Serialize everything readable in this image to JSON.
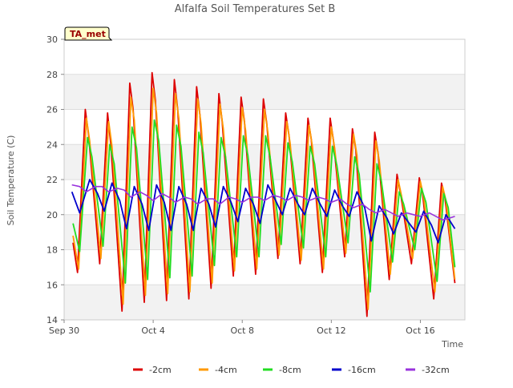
{
  "chart_data": {
    "type": "line",
    "title": "Alfalfa Soil Temperatures Set B",
    "xlabel": "Time",
    "ylabel": "Soil Temperature (C)",
    "badge": "TA_met",
    "xlim": [
      0,
      18
    ],
    "ylim": [
      14,
      30
    ],
    "x_ticks": [
      {
        "value": 0,
        "label": "Sep 30"
      },
      {
        "value": 4,
        "label": "Oct 4"
      },
      {
        "value": 8,
        "label": "Oct 8"
      },
      {
        "value": 12,
        "label": "Oct 12"
      },
      {
        "value": 16,
        "label": "Oct 16"
      }
    ],
    "y_ticks": [
      14,
      16,
      18,
      20,
      22,
      24,
      26,
      28,
      30
    ],
    "grid": true,
    "legend_position": "bottom",
    "series": [
      {
        "name": "-2cm",
        "color": "#dd0000",
        "width": 1.8,
        "points": [
          [
            0.4,
            18.4
          ],
          [
            0.6,
            16.7
          ],
          [
            0.95,
            26.0
          ],
          [
            1.1,
            24.5
          ],
          [
            1.6,
            17.2
          ],
          [
            1.95,
            25.8
          ],
          [
            2.1,
            24.0
          ],
          [
            2.6,
            14.5
          ],
          [
            2.95,
            27.5
          ],
          [
            3.1,
            26.0
          ],
          [
            3.6,
            15.0
          ],
          [
            3.95,
            28.1
          ],
          [
            4.1,
            26.5
          ],
          [
            4.6,
            15.1
          ],
          [
            4.95,
            27.7
          ],
          [
            5.1,
            26.0
          ],
          [
            5.6,
            15.2
          ],
          [
            5.95,
            27.3
          ],
          [
            6.1,
            25.7
          ],
          [
            6.6,
            15.8
          ],
          [
            6.95,
            26.9
          ],
          [
            7.1,
            25.3
          ],
          [
            7.6,
            16.5
          ],
          [
            7.95,
            26.7
          ],
          [
            8.1,
            25.3
          ],
          [
            8.6,
            16.6
          ],
          [
            8.95,
            26.6
          ],
          [
            9.1,
            25.2
          ],
          [
            9.6,
            17.5
          ],
          [
            9.95,
            25.8
          ],
          [
            10.1,
            24.5
          ],
          [
            10.6,
            17.2
          ],
          [
            10.95,
            25.5
          ],
          [
            11.1,
            24.3
          ],
          [
            11.6,
            16.7
          ],
          [
            11.95,
            25.5
          ],
          [
            12.1,
            24.2
          ],
          [
            12.6,
            17.6
          ],
          [
            12.95,
            24.9
          ],
          [
            13.1,
            23.7
          ],
          [
            13.6,
            14.2
          ],
          [
            13.95,
            24.7
          ],
          [
            14.1,
            23.5
          ],
          [
            14.6,
            16.3
          ],
          [
            14.95,
            22.3
          ],
          [
            15.1,
            21.3
          ],
          [
            15.6,
            17.2
          ],
          [
            15.95,
            22.1
          ],
          [
            16.1,
            21.2
          ],
          [
            16.6,
            15.2
          ],
          [
            16.95,
            21.8
          ],
          [
            17.1,
            21.0
          ],
          [
            17.55,
            16.1
          ]
        ]
      },
      {
        "name": "-4cm",
        "color": "#ff9900",
        "width": 1.8,
        "points": [
          [
            0.4,
            18.8
          ],
          [
            0.65,
            16.9
          ],
          [
            1.0,
            25.5
          ],
          [
            1.15,
            24.2
          ],
          [
            1.65,
            17.5
          ],
          [
            2.0,
            25.3
          ],
          [
            2.15,
            23.9
          ],
          [
            2.65,
            14.9
          ],
          [
            3.0,
            26.7
          ],
          [
            3.15,
            25.4
          ],
          [
            3.65,
            15.4
          ],
          [
            4.0,
            27.2
          ],
          [
            4.15,
            25.8
          ],
          [
            4.65,
            15.5
          ],
          [
            5.0,
            26.9
          ],
          [
            5.15,
            25.5
          ],
          [
            5.65,
            15.6
          ],
          [
            6.0,
            26.6
          ],
          [
            6.15,
            25.2
          ],
          [
            6.65,
            16.1
          ],
          [
            7.0,
            26.3
          ],
          [
            7.15,
            24.9
          ],
          [
            7.65,
            16.8
          ],
          [
            8.0,
            26.1
          ],
          [
            8.15,
            24.8
          ],
          [
            8.65,
            16.9
          ],
          [
            9.0,
            26.0
          ],
          [
            9.15,
            24.7
          ],
          [
            9.65,
            17.7
          ],
          [
            10.0,
            25.3
          ],
          [
            10.15,
            24.1
          ],
          [
            10.65,
            17.4
          ],
          [
            11.0,
            25.1
          ],
          [
            11.15,
            23.9
          ],
          [
            11.65,
            16.9
          ],
          [
            12.0,
            25.0
          ],
          [
            12.15,
            23.8
          ],
          [
            12.65,
            17.8
          ],
          [
            13.0,
            24.6
          ],
          [
            13.15,
            23.4
          ],
          [
            13.65,
            14.6
          ],
          [
            14.0,
            24.2
          ],
          [
            14.15,
            23.1
          ],
          [
            14.65,
            16.6
          ],
          [
            15.0,
            22.0
          ],
          [
            15.15,
            21.1
          ],
          [
            15.65,
            17.5
          ],
          [
            16.0,
            21.9
          ],
          [
            16.15,
            21.0
          ],
          [
            16.65,
            15.6
          ],
          [
            17.0,
            21.6
          ],
          [
            17.15,
            20.8
          ],
          [
            17.55,
            16.3
          ]
        ]
      },
      {
        "name": "-8cm",
        "color": "#22dd22",
        "width": 1.8,
        "points": [
          [
            0.4,
            19.5
          ],
          [
            0.7,
            17.9
          ],
          [
            1.05,
            24.4
          ],
          [
            1.25,
            23.3
          ],
          [
            1.75,
            18.2
          ],
          [
            2.05,
            24.0
          ],
          [
            2.25,
            22.9
          ],
          [
            2.75,
            16.1
          ],
          [
            3.05,
            25.0
          ],
          [
            3.25,
            23.8
          ],
          [
            3.75,
            16.3
          ],
          [
            4.05,
            25.4
          ],
          [
            4.25,
            24.2
          ],
          [
            4.75,
            16.4
          ],
          [
            5.05,
            25.1
          ],
          [
            5.25,
            23.9
          ],
          [
            5.75,
            16.5
          ],
          [
            6.05,
            24.7
          ],
          [
            6.25,
            23.5
          ],
          [
            6.75,
            17.1
          ],
          [
            7.05,
            24.4
          ],
          [
            7.25,
            23.3
          ],
          [
            7.75,
            17.6
          ],
          [
            8.05,
            24.5
          ],
          [
            8.25,
            23.4
          ],
          [
            8.75,
            17.6
          ],
          [
            9.05,
            24.5
          ],
          [
            9.25,
            23.3
          ],
          [
            9.75,
            18.3
          ],
          [
            10.05,
            24.1
          ],
          [
            10.25,
            23.0
          ],
          [
            10.75,
            18.1
          ],
          [
            11.05,
            23.9
          ],
          [
            11.25,
            22.9
          ],
          [
            11.75,
            17.6
          ],
          [
            12.05,
            23.9
          ],
          [
            12.25,
            22.8
          ],
          [
            12.75,
            18.4
          ],
          [
            13.05,
            23.3
          ],
          [
            13.25,
            22.3
          ],
          [
            13.75,
            15.6
          ],
          [
            14.05,
            22.9
          ],
          [
            14.25,
            21.9
          ],
          [
            14.75,
            17.3
          ],
          [
            15.05,
            21.3
          ],
          [
            15.25,
            20.6
          ],
          [
            15.75,
            18.0
          ],
          [
            16.05,
            21.5
          ],
          [
            16.25,
            20.7
          ],
          [
            16.75,
            16.2
          ],
          [
            17.05,
            21.2
          ],
          [
            17.25,
            20.4
          ],
          [
            17.55,
            17.0
          ]
        ]
      },
      {
        "name": "-16cm",
        "color": "#0000cc",
        "width": 1.8,
        "points": [
          [
            0.35,
            21.3
          ],
          [
            0.7,
            20.1
          ],
          [
            1.15,
            22.0
          ],
          [
            1.5,
            21.2
          ],
          [
            1.8,
            20.2
          ],
          [
            2.15,
            21.8
          ],
          [
            2.5,
            20.8
          ],
          [
            2.8,
            19.2
          ],
          [
            3.15,
            21.6
          ],
          [
            3.5,
            20.6
          ],
          [
            3.8,
            19.1
          ],
          [
            4.15,
            21.7
          ],
          [
            4.5,
            20.7
          ],
          [
            4.8,
            19.1
          ],
          [
            5.15,
            21.6
          ],
          [
            5.5,
            20.6
          ],
          [
            5.8,
            19.1
          ],
          [
            6.15,
            21.5
          ],
          [
            6.5,
            20.6
          ],
          [
            6.8,
            19.3
          ],
          [
            7.15,
            21.6
          ],
          [
            7.5,
            20.7
          ],
          [
            7.8,
            19.6
          ],
          [
            8.15,
            21.5
          ],
          [
            8.5,
            20.6
          ],
          [
            8.8,
            19.5
          ],
          [
            9.15,
            21.7
          ],
          [
            9.5,
            20.8
          ],
          [
            9.8,
            20.0
          ],
          [
            10.15,
            21.5
          ],
          [
            10.5,
            20.6
          ],
          [
            10.8,
            20.0
          ],
          [
            11.15,
            21.5
          ],
          [
            11.5,
            20.6
          ],
          [
            11.8,
            19.9
          ],
          [
            12.15,
            21.4
          ],
          [
            12.5,
            20.5
          ],
          [
            12.8,
            19.9
          ],
          [
            13.15,
            21.3
          ],
          [
            13.5,
            20.4
          ],
          [
            13.8,
            18.5
          ],
          [
            14.15,
            20.5
          ],
          [
            14.5,
            19.8
          ],
          [
            14.8,
            18.9
          ],
          [
            15.15,
            20.1
          ],
          [
            15.5,
            19.5
          ],
          [
            15.8,
            19.0
          ],
          [
            16.15,
            20.2
          ],
          [
            16.5,
            19.4
          ],
          [
            16.8,
            18.4
          ],
          [
            17.15,
            20.0
          ],
          [
            17.55,
            19.2
          ]
        ]
      },
      {
        "name": "-32cm",
        "color": "#9933dd",
        "width": 1.6,
        "points": [
          [
            0.35,
            21.7
          ],
          [
            0.7,
            21.6
          ],
          [
            1.0,
            21.3
          ],
          [
            1.4,
            21.6
          ],
          [
            1.7,
            21.6
          ],
          [
            2.0,
            21.3
          ],
          [
            2.4,
            21.5
          ],
          [
            2.7,
            21.4
          ],
          [
            3.0,
            21.0
          ],
          [
            3.4,
            21.3
          ],
          [
            3.7,
            21.1
          ],
          [
            4.0,
            20.8
          ],
          [
            4.4,
            21.2
          ],
          [
            4.7,
            21.0
          ],
          [
            5.0,
            20.7
          ],
          [
            5.4,
            21.0
          ],
          [
            5.7,
            20.9
          ],
          [
            6.0,
            20.6
          ],
          [
            6.4,
            20.9
          ],
          [
            6.7,
            20.9
          ],
          [
            7.0,
            20.6
          ],
          [
            7.4,
            21.0
          ],
          [
            7.7,
            20.9
          ],
          [
            8.0,
            20.7
          ],
          [
            8.4,
            21.0
          ],
          [
            8.7,
            21.0
          ],
          [
            9.0,
            20.8
          ],
          [
            9.4,
            21.1
          ],
          [
            9.7,
            21.0
          ],
          [
            10.0,
            20.8
          ],
          [
            10.4,
            21.1
          ],
          [
            10.7,
            21.0
          ],
          [
            11.0,
            20.8
          ],
          [
            11.4,
            21.0
          ],
          [
            11.7,
            20.9
          ],
          [
            12.0,
            20.7
          ],
          [
            12.4,
            20.9
          ],
          [
            12.7,
            20.6
          ],
          [
            13.0,
            20.4
          ],
          [
            13.4,
            20.6
          ],
          [
            13.7,
            20.3
          ],
          [
            14.0,
            20.1
          ],
          [
            14.4,
            20.3
          ],
          [
            14.7,
            20.1
          ],
          [
            15.0,
            19.9
          ],
          [
            15.4,
            20.1
          ],
          [
            15.7,
            20.0
          ],
          [
            16.0,
            19.9
          ],
          [
            16.4,
            20.1
          ],
          [
            16.7,
            19.9
          ],
          [
            17.0,
            19.7
          ],
          [
            17.3,
            19.8
          ],
          [
            17.55,
            19.9
          ]
        ]
      }
    ]
  }
}
